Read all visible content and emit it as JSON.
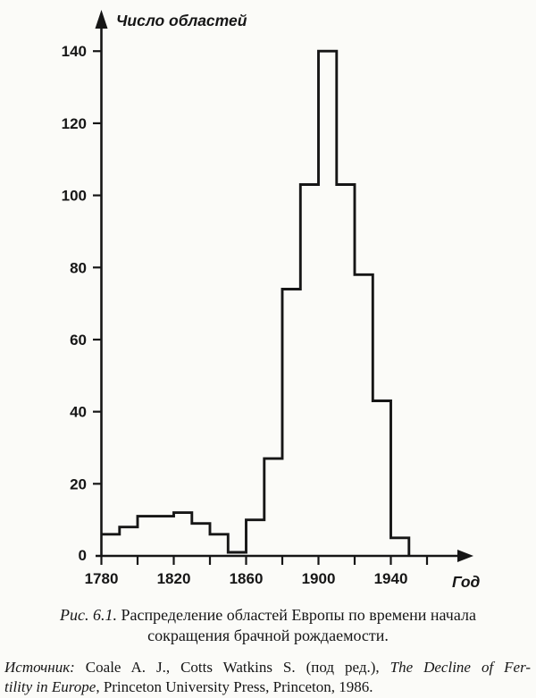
{
  "chart_data": {
    "type": "bar",
    "subtype": "step-outline-histogram",
    "y_axis_label": "Число областей",
    "x_axis_label": "Год",
    "bin_width_years": 10,
    "bin_start_years": [
      1780,
      1790,
      1800,
      1810,
      1820,
      1830,
      1840,
      1850,
      1860,
      1870,
      1880,
      1890,
      1900,
      1910,
      1920,
      1930,
      1940
    ],
    "values": [
      6,
      8,
      11,
      11,
      12,
      9,
      6,
      1,
      10,
      27,
      74,
      103,
      140,
      103,
      78,
      43,
      5
    ],
    "x_end_year": 1950,
    "x_ticks": [
      1780,
      1800,
      1820,
      1840,
      1860,
      1880,
      1900,
      1920,
      1940,
      1960
    ],
    "x_tick_labeled": [
      1780,
      1820,
      1860,
      1900,
      1940
    ],
    "y_ticks": [
      20,
      40,
      60,
      80,
      100,
      120,
      140
    ],
    "y_zero_label": "0",
    "xlim": [
      1780,
      1968
    ],
    "ylim": [
      0,
      150
    ],
    "grid": false,
    "legend": false,
    "line_color": "#161616",
    "background_color": "#fbfbf8"
  },
  "caption": {
    "figure_label": "Рис. 6.1.",
    "line1_rest": " Распределение областей Европы по времени начала",
    "line2": "сокращения брачной рождаемости."
  },
  "source": {
    "label": "Источник:",
    "line1_roman": " Coale A. J., Cotts Watkins S. (под ред.), ",
    "line1_italic": "The Decline of Fer-",
    "line2_italic": "tility in Europe",
    "line2_roman": ", Princeton University Press, Princeton, 1986."
  }
}
